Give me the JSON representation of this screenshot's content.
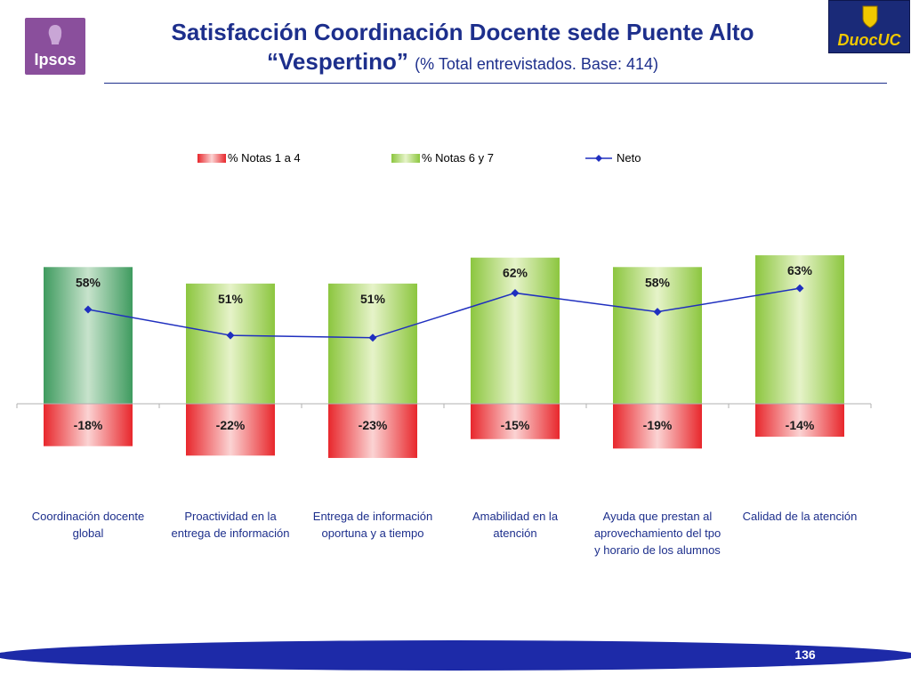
{
  "header": {
    "title_line1": "Satisfacción Coordinación Docente sede Puente Alto",
    "title_line2_bold": "“Vespertino”",
    "title_line2_sub": "(% Total entrevistados. Base: 414)"
  },
  "logos": {
    "ipsos": "Ipsos",
    "duoc": "DuocUC"
  },
  "page": {
    "number": "136"
  },
  "colors": {
    "title": "#1d2f8c",
    "positive_bar": "#8cc63f",
    "positive_first_bar": "#3f9b5f",
    "negative_bar": "#e8272c",
    "neto_line": "#1f2fbf"
  },
  "chart_data": {
    "type": "bar",
    "legend_position": "top",
    "legend": [
      "% Notas 1 a 4",
      "% Notas 6 y 7",
      "Neto"
    ],
    "categories": [
      [
        "Coordinación docente",
        "global"
      ],
      [
        "Proactividad en la",
        "entrega de información"
      ],
      [
        "Entrega de información",
        "oportuna y a tiempo"
      ],
      [
        "Amabilidad en la",
        "atención"
      ],
      [
        "Ayuda que prestan al",
        "aprovechamiento del tpo",
        "y horario de los alumnos"
      ],
      [
        "Calidad de la atención"
      ]
    ],
    "series": [
      {
        "name": "% Notas 1 a 4",
        "values": [
          -18,
          -22,
          -23,
          -15,
          -19,
          -14
        ],
        "labels": [
          "-18%",
          "-22%",
          "-23%",
          "-15%",
          "-19%",
          "-14%"
        ]
      },
      {
        "name": "% Notas 6 y 7",
        "values": [
          58,
          51,
          51,
          62,
          58,
          63
        ],
        "labels": [
          "58%",
          "51%",
          "51%",
          "62%",
          "58%",
          "63%"
        ]
      },
      {
        "name": "Neto",
        "values": [
          40,
          29,
          28,
          47,
          39,
          49
        ]
      }
    ],
    "ylim": [
      -23,
      63
    ]
  }
}
